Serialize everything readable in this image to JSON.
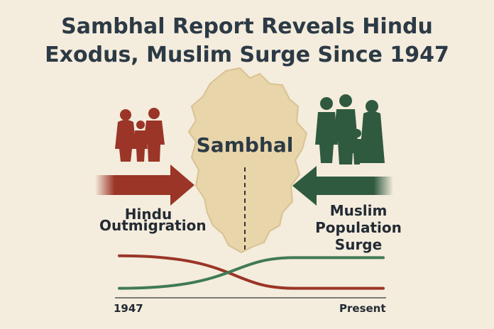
{
  "headline": {
    "line1": "Sambhal Report Reveals Hindu",
    "line2": "Exodus, Muslim Surge Since 1947"
  },
  "region": {
    "name": "Sambhal"
  },
  "left_flow": {
    "label_line1": "Hindu",
    "label_line2": "Outmigration",
    "color": "#9a3527",
    "icon": "family-silhouette-icon"
  },
  "right_flow": {
    "label_line1": "Muslim",
    "label_line2": "Population",
    "label_line3": "Surge",
    "color": "#2f5a3f",
    "icon": "family-silhouette-icon"
  },
  "chart_data": {
    "type": "line",
    "x": [
      "1947",
      "Present"
    ],
    "xlabel": "",
    "ylabel": "",
    "series": [
      {
        "color": "#9a3527",
        "trend": "decreasing",
        "values": [
          0.95,
          0.1
        ]
      },
      {
        "color": "#3f7a55",
        "trend": "increasing",
        "values": [
          0.1,
          0.9
        ]
      }
    ],
    "tick_labels": {
      "start": "1947",
      "end": "Present"
    }
  }
}
